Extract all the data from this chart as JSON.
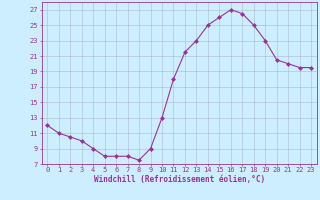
{
  "x": [
    0,
    1,
    2,
    3,
    4,
    5,
    6,
    7,
    8,
    9,
    10,
    11,
    12,
    13,
    14,
    15,
    16,
    17,
    18,
    19,
    20,
    21,
    22,
    23
  ],
  "y": [
    12,
    11,
    10.5,
    10,
    9,
    8,
    8,
    8,
    7.5,
    9,
    13,
    18,
    21.5,
    23,
    25,
    26,
    27,
    26.5,
    25,
    23,
    20.5,
    20,
    19.5,
    19.5
  ],
  "line_color": "#993399",
  "marker": "D",
  "marker_size": 2,
  "bg_color": "#cceeff",
  "grid_color": "#aabbcc",
  "xlabel": "Windchill (Refroidissement éolien,°C)",
  "ylim": [
    7,
    28
  ],
  "yticks": [
    7,
    9,
    11,
    13,
    15,
    17,
    19,
    21,
    23,
    25,
    27
  ],
  "xticks": [
    0,
    1,
    2,
    3,
    4,
    5,
    6,
    7,
    8,
    9,
    10,
    11,
    12,
    13,
    14,
    15,
    16,
    17,
    18,
    19,
    20,
    21,
    22,
    23
  ],
  "xlim": [
    -0.5,
    23.5
  ],
  "tick_fontsize": 5,
  "xlabel_fontsize": 5.5,
  "line_width": 0.8
}
